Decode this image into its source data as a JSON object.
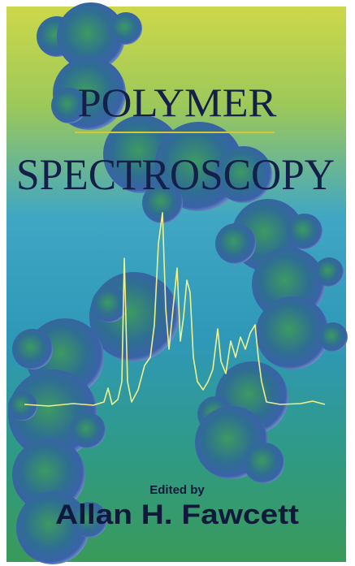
{
  "cover": {
    "title_line1": "POLYMER",
    "title_line2": "SPECTROSCOPY",
    "edited_by": "Edited by",
    "editor": "Allan H. Fawcett"
  }
}
